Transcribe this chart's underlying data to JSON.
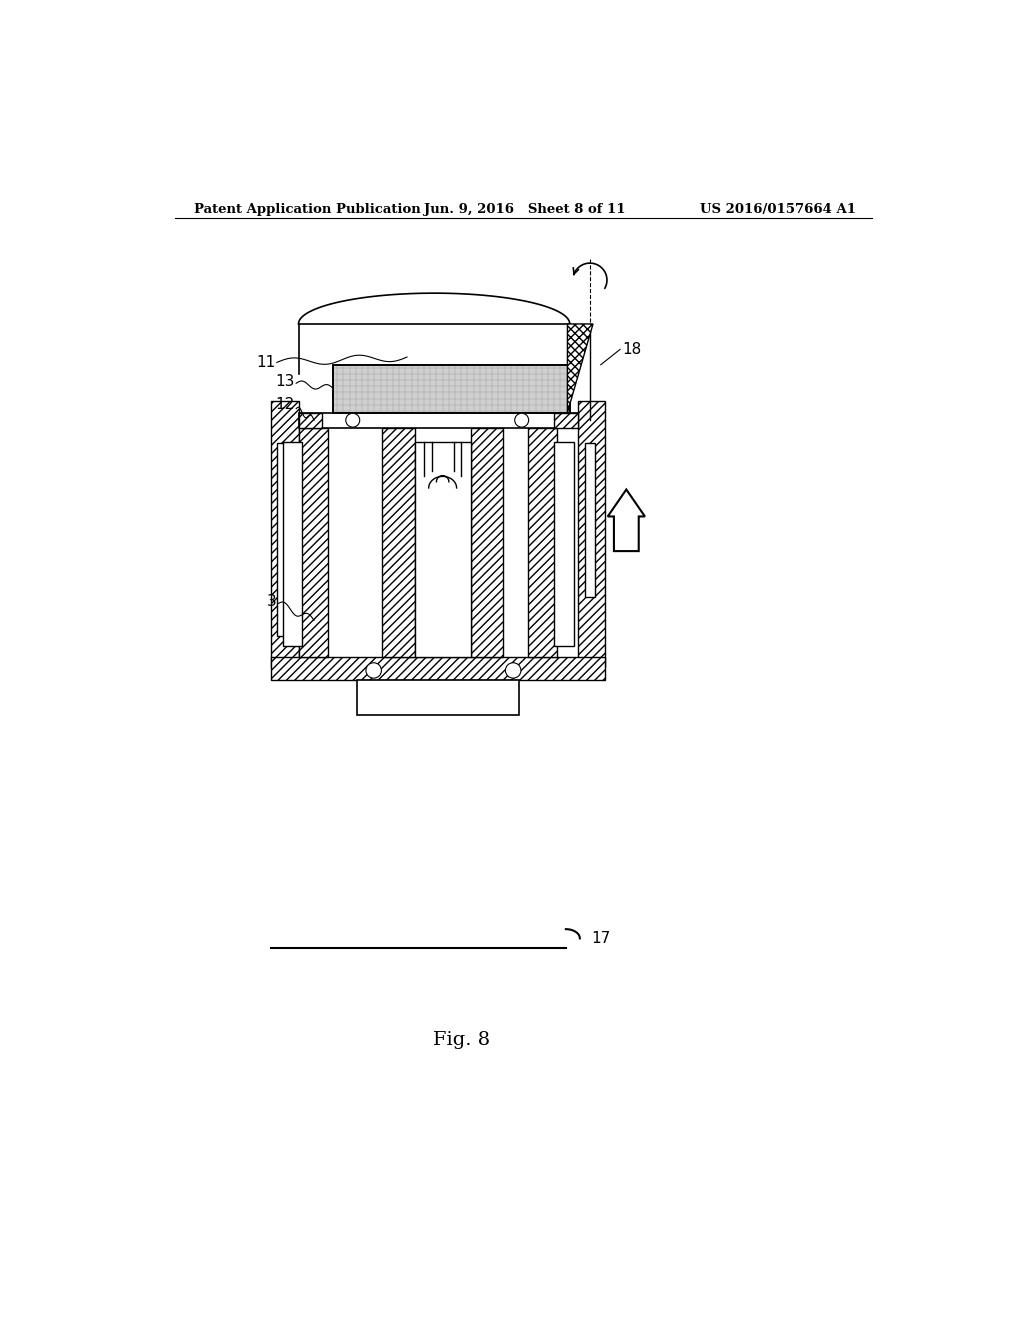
{
  "background_color": "#ffffff",
  "header_left": "Patent Application Publication",
  "header_center": "Jun. 9, 2016   Sheet 8 of 11",
  "header_right": "US 2016/0157664 A1",
  "figure_label": "Fig. 8",
  "line_color": "#000000",
  "hatch_color": "#000000"
}
